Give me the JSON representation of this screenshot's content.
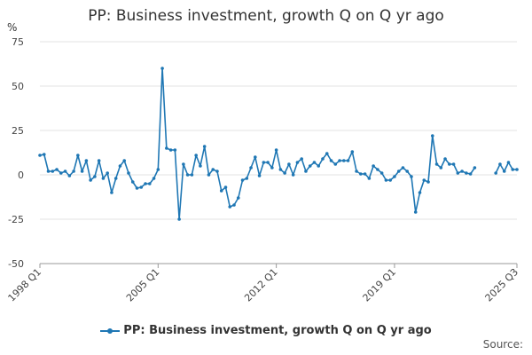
{
  "chart_data": {
    "type": "line",
    "title": "PP: Business investment, growth Q on Q yr ago",
    "ylabel": "%",
    "xlabel": "",
    "ylim": [
      -50,
      75
    ],
    "yticks": [
      75,
      50,
      25,
      0,
      -25,
      -50
    ],
    "xtick_labels": [
      "1998 Q1",
      "2005 Q1",
      "2012 Q1",
      "2019 Q1",
      "2025 Q3"
    ],
    "x_start": "1998 Q1",
    "x_end": "2025 Q3",
    "grid": true,
    "legend_position": "bottom",
    "series": [
      {
        "name": "PP: Business investment, growth Q on Q yr ago",
        "color": "#1f77b4",
        "segments": [
          [
            11,
            11.5,
            2,
            2,
            3,
            1,
            2,
            -0.5,
            2,
            11,
            2,
            8,
            -3,
            -1,
            8,
            -2,
            1,
            -10,
            -2,
            5,
            8,
            1,
            -4,
            -7.5,
            -7,
            -5,
            -5,
            -2,
            3,
            60,
            15,
            14,
            14,
            -25,
            6,
            0,
            0,
            11,
            5,
            16,
            0,
            3,
            2,
            -9,
            -7,
            -18,
            -17,
            -13,
            -3,
            -2,
            4,
            10,
            -0.5,
            7,
            7,
            4,
            14,
            3,
            1,
            6,
            0,
            7,
            9,
            2,
            5,
            7,
            5,
            9,
            12,
            8,
            6,
            8,
            8,
            8,
            13,
            2,
            0.5,
            0.5,
            -2,
            5,
            3,
            1,
            -3,
            -3,
            -1,
            2,
            4,
            2,
            -1,
            -21,
            -10,
            -3,
            -4,
            22,
            6,
            4,
            9,
            6,
            6,
            1,
            2,
            1,
            0.5,
            4
          ],
          [
            1,
            6,
            2,
            7,
            3,
            3
          ]
        ],
        "gap_quarters": 4
      }
    ]
  },
  "legend": {
    "label": "PP: Business investment, growth Q on Q yr ago"
  },
  "source": "Source:"
}
